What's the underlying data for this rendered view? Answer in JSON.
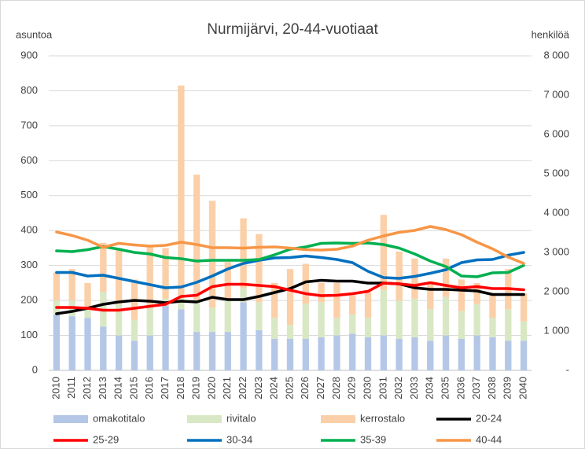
{
  "chart_data": {
    "type": "bar",
    "title": "Nurmijärvi, 20-44-vuotiaat",
    "y_label": "asuntoa",
    "y2_label": "henkilöä",
    "categories": [
      "2010",
      "2011",
      "2012",
      "2013",
      "2014",
      "2015",
      "2016",
      "2017",
      "2018",
      "2019",
      "2020",
      "2021",
      "2022",
      "2023",
      "2024",
      "2025",
      "2026",
      "2027",
      "2028",
      "2029",
      "2030",
      "2031",
      "2032",
      "2033",
      "2034",
      "2035",
      "2036",
      "2037",
      "2038",
      "2039",
      "2040"
    ],
    "ylim": [
      0,
      900
    ],
    "yticks": [
      0,
      100,
      200,
      300,
      400,
      500,
      600,
      700,
      800,
      900
    ],
    "y2lim": [
      0,
      8000
    ],
    "y2ticks": [
      {
        "value": 0,
        "label": "-"
      },
      {
        "value": 1000,
        "label": "1 000"
      },
      {
        "value": 2000,
        "label": "2 000"
      },
      {
        "value": 3000,
        "label": "3 000"
      },
      {
        "value": 4000,
        "label": "4 000"
      },
      {
        "value": 5000,
        "label": "5 000"
      },
      {
        "value": 6000,
        "label": "6 000"
      },
      {
        "value": 7000,
        "label": "7 000"
      },
      {
        "value": 8000,
        "label": "8 000"
      }
    ],
    "grid": true,
    "stacked": true,
    "series": [
      {
        "name": "omakotitalo",
        "type": "bar",
        "color": "#b4c7e7",
        "values": [
          160,
          155,
          150,
          125,
          100,
          85,
          100,
          185,
          175,
          110,
          110,
          110,
          195,
          115,
          90,
          90,
          90,
          95,
          100,
          105,
          95,
          100,
          90,
          95,
          85,
          100,
          90,
          100,
          95,
          85,
          85
        ]
      },
      {
        "name": "rivitalo",
        "type": "bar",
        "color": "#d9e8c4",
        "values": [
          40,
          45,
          30,
          100,
          90,
          60,
          80,
          20,
          40,
          90,
          70,
          90,
          40,
          80,
          60,
          40,
          100,
          100,
          50,
          55,
          55,
          130,
          110,
          110,
          90,
          110,
          80,
          90,
          55,
          90,
          55
        ]
      },
      {
        "name": "kerrostalo",
        "type": "bar",
        "color": "#fbcfa8",
        "values": [
          80,
          90,
          70,
          140,
          160,
          115,
          175,
          145,
          600,
          360,
          305,
          110,
          200,
          195,
          100,
          160,
          115,
          55,
          100,
          60,
          80,
          215,
          140,
          115,
          75,
          110,
          90,
          60,
          70,
          115,
          80
        ]
      },
      {
        "name": "20-24",
        "type": "line",
        "axis": "y2",
        "color": "#000000",
        "values": [
          1440,
          1500,
          1580,
          1680,
          1740,
          1780,
          1760,
          1720,
          1760,
          1740,
          1860,
          1800,
          1800,
          1880,
          1980,
          2080,
          2250,
          2290,
          2270,
          2270,
          2220,
          2220,
          2200,
          2100,
          2060,
          2060,
          2040,
          2020,
          1930,
          1930,
          1930
        ]
      },
      {
        "name": "25-29",
        "type": "line",
        "axis": "y2",
        "color": "#ff0000",
        "values": [
          1600,
          1600,
          1580,
          1530,
          1530,
          1580,
          1630,
          1680,
          1880,
          1910,
          2130,
          2190,
          2190,
          2160,
          2130,
          2040,
          1950,
          1900,
          1910,
          1950,
          2010,
          2220,
          2200,
          2160,
          2230,
          2160,
          2100,
          2130,
          2080,
          2080,
          2050
        ]
      },
      {
        "name": "30-34",
        "type": "line",
        "axis": "y2",
        "color": "#0070c0",
        "values": [
          2490,
          2490,
          2400,
          2420,
          2340,
          2260,
          2180,
          2100,
          2120,
          2240,
          2400,
          2580,
          2720,
          2800,
          2860,
          2870,
          2910,
          2870,
          2820,
          2740,
          2520,
          2360,
          2340,
          2390,
          2470,
          2560,
          2740,
          2810,
          2820,
          2930,
          3000
        ]
      },
      {
        "name": "35-39",
        "type": "line",
        "axis": "y2",
        "color": "#00b050",
        "values": [
          3040,
          3020,
          3070,
          3150,
          3080,
          3000,
          2960,
          2870,
          2840,
          2780,
          2800,
          2800,
          2800,
          2820,
          2940,
          3080,
          3140,
          3230,
          3240,
          3230,
          3240,
          3200,
          3110,
          2960,
          2780,
          2640,
          2400,
          2380,
          2480,
          2490,
          2670
        ]
      },
      {
        "name": "40-44",
        "type": "line",
        "axis": "y2",
        "color": "#f79646",
        "values": [
          3520,
          3430,
          3310,
          3130,
          3230,
          3190,
          3160,
          3180,
          3260,
          3200,
          3120,
          3120,
          3110,
          3130,
          3140,
          3110,
          3070,
          3060,
          3080,
          3160,
          3310,
          3420,
          3510,
          3560,
          3660,
          3580,
          3450,
          3260,
          3090,
          2880,
          2720
        ]
      }
    ]
  }
}
